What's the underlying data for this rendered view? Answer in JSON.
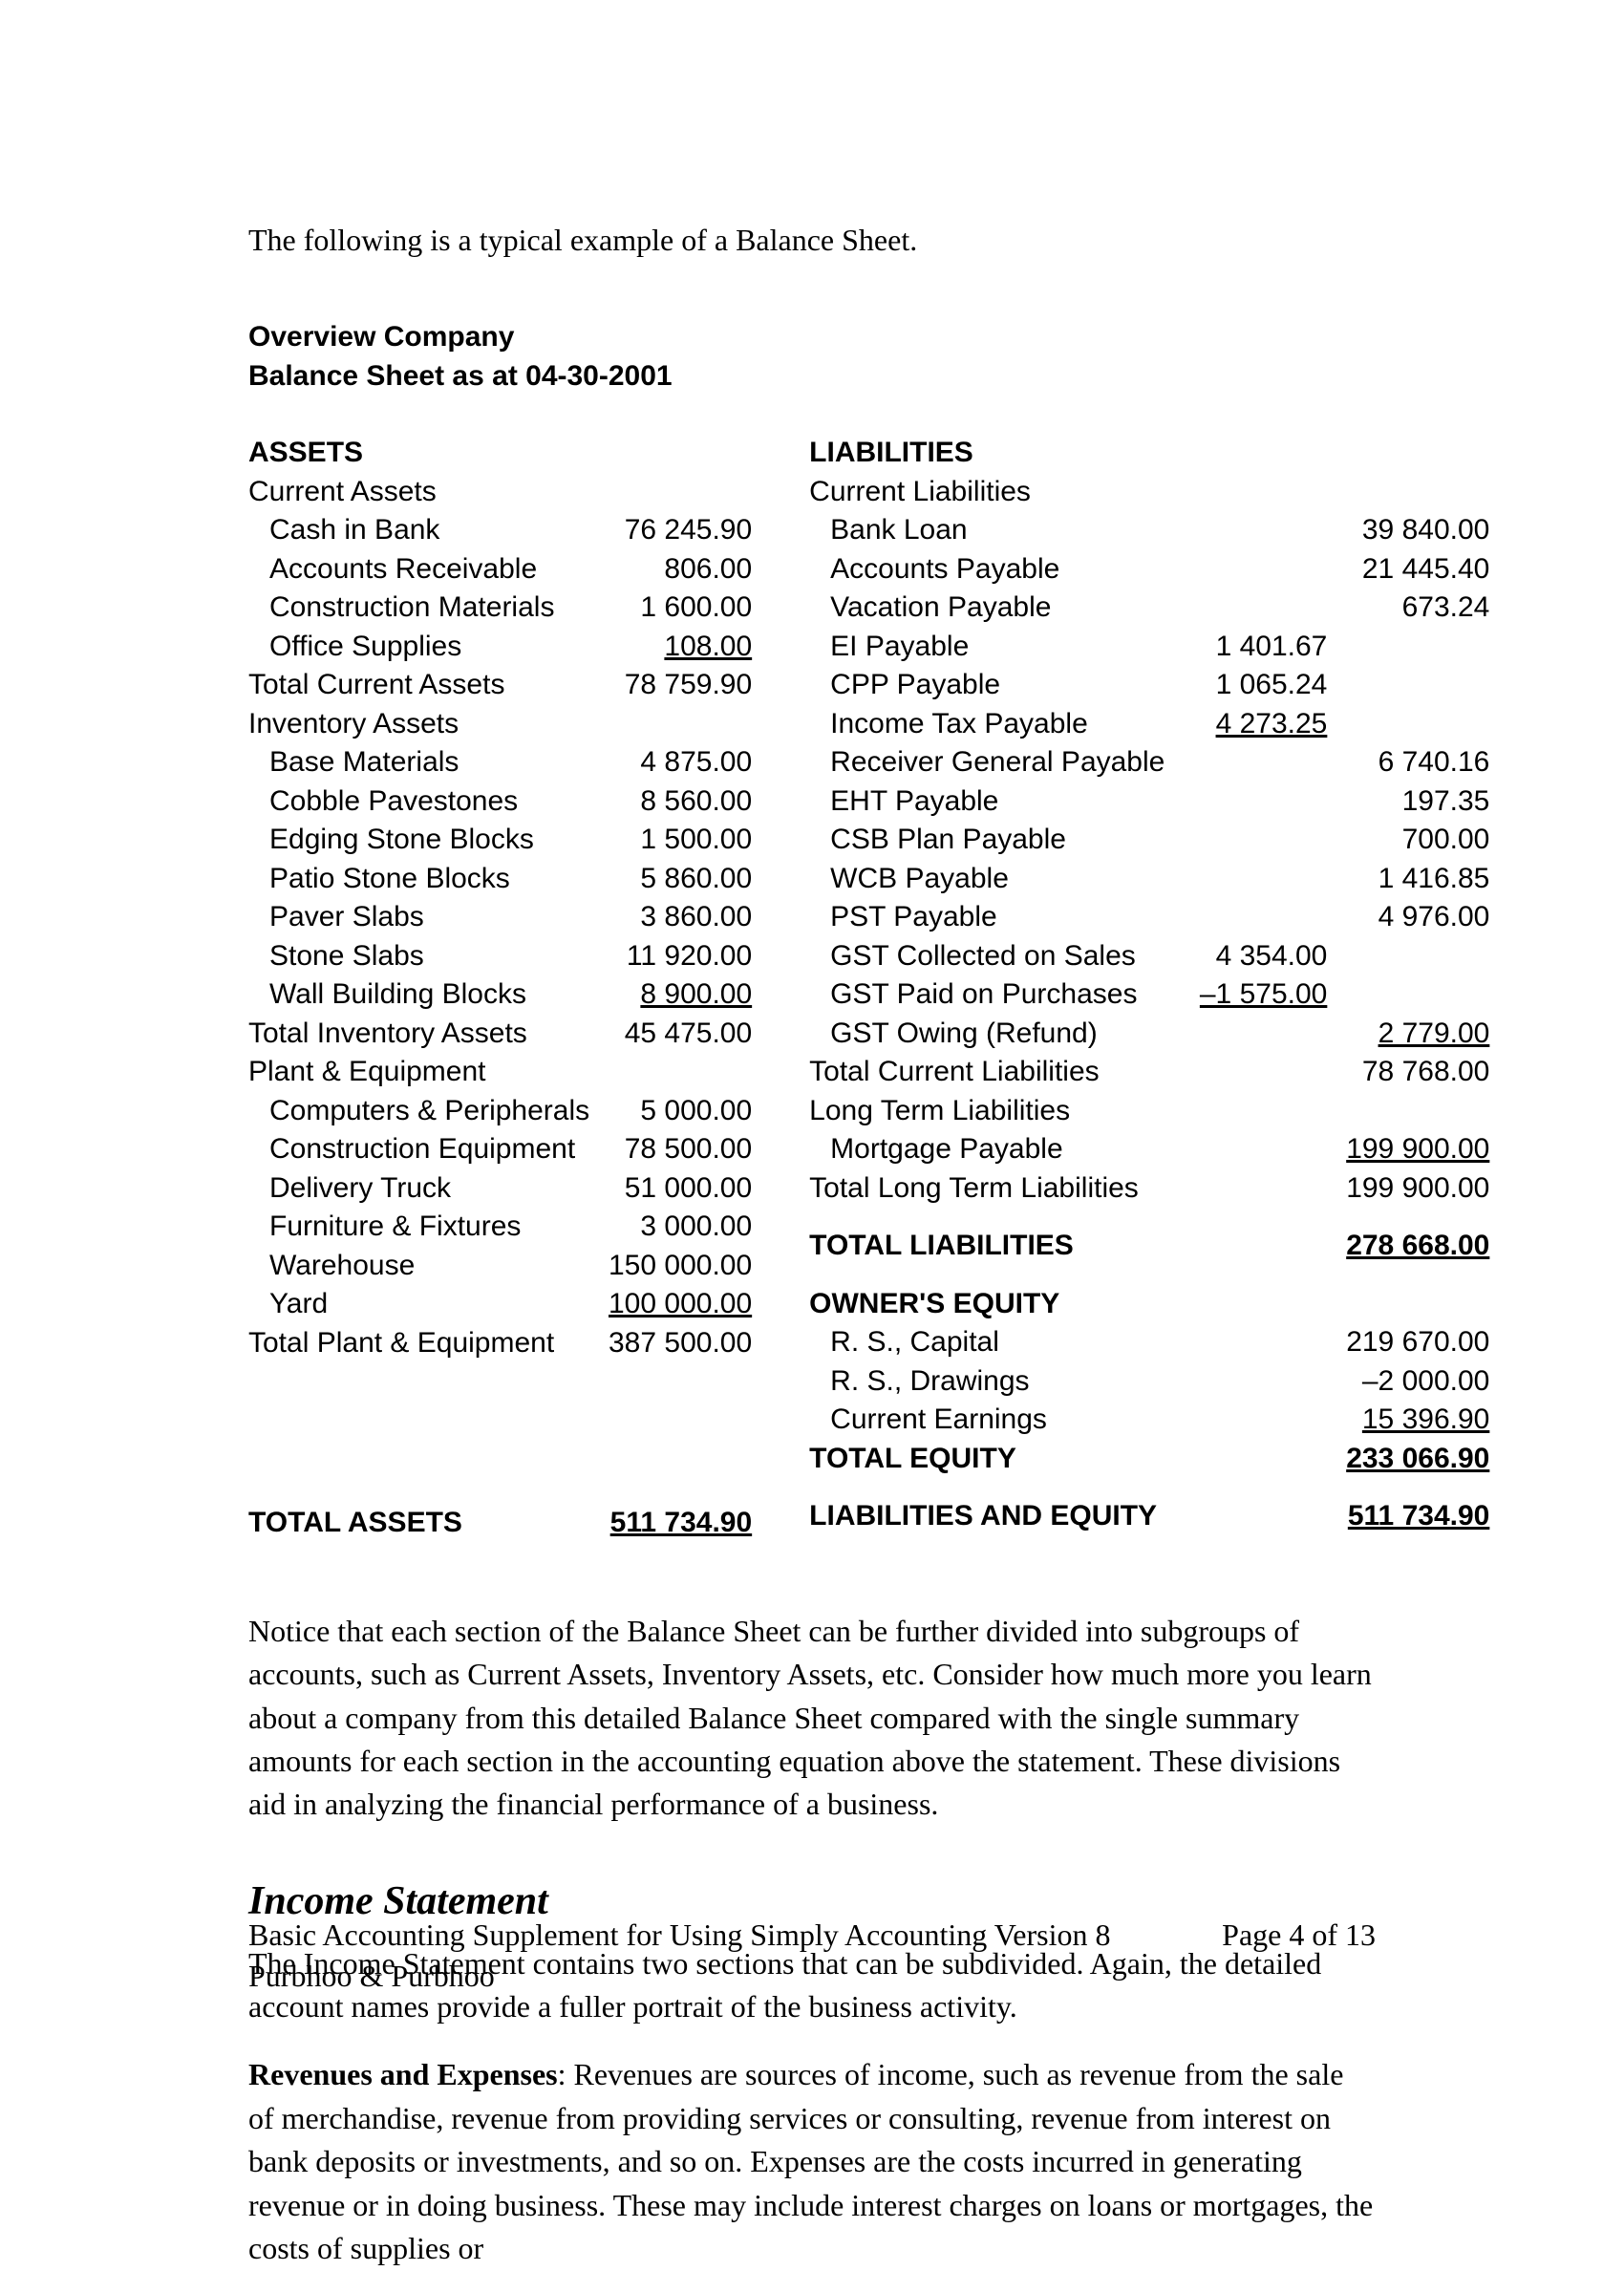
{
  "intro": "The following is a typical example of a Balance Sheet.",
  "companyName": "Overview Company",
  "sheetTitle": "Balance Sheet  as at 04-30-2001",
  "assets": {
    "heading": "ASSETS",
    "currentAssets": {
      "label": "Current Assets",
      "items": [
        {
          "label": "Cash in Bank",
          "value": "76 245.90"
        },
        {
          "label": "Accounts Receivable",
          "value": "806.00"
        },
        {
          "label": "Construction Materials",
          "value": "1 600.00"
        },
        {
          "label": "Office Supplies",
          "value": "108.00",
          "underline": true
        }
      ],
      "totalLabel": "Total Current Assets",
      "totalValue": "78 759.90"
    },
    "inventoryAssets": {
      "label": "Inventory Assets",
      "items": [
        {
          "label": "Base Materials",
          "value": "4 875.00"
        },
        {
          "label": "Cobble Pavestones",
          "value": "8 560.00"
        },
        {
          "label": "Edging Stone Blocks",
          "value": "1 500.00"
        },
        {
          "label": "Patio Stone Blocks",
          "value": "5 860.00"
        },
        {
          "label": "Paver Slabs",
          "value": "3 860.00"
        },
        {
          "label": "Stone Slabs",
          "value": "11 920.00"
        },
        {
          "label": "Wall Building Blocks",
          "value": "8 900.00",
          "underline": true
        }
      ],
      "totalLabel": "Total Inventory Assets",
      "totalValue": "45 475.00"
    },
    "plantEquipment": {
      "label": "Plant & Equipment",
      "items": [
        {
          "label": "Computers & Peripherals",
          "value": "5 000.00"
        },
        {
          "label": "Construction Equipment",
          "value": "78 500.00"
        },
        {
          "label": "Delivery Truck",
          "value": "51 000.00"
        },
        {
          "label": "Furniture & Fixtures",
          "value": "3 000.00"
        },
        {
          "label": "Warehouse",
          "value": "150 000.00"
        },
        {
          "label": "Yard",
          "value": "100 000.00",
          "underline": true
        }
      ],
      "totalLabel": "Total Plant & Equipment",
      "totalValue": "387 500.00"
    },
    "totalLabel": "TOTAL ASSETS",
    "totalValue": "511 734.90"
  },
  "liabilities": {
    "heading": "LIABILITIES",
    "currentLiabilities": {
      "label": "Current Liabilities",
      "items": [
        {
          "label": "Bank Loan",
          "v2": "39 840.00"
        },
        {
          "label": "Accounts Payable",
          "v2": "21 445.40"
        },
        {
          "label": "Vacation Payable",
          "v2": "673.24"
        },
        {
          "label": "EI Payable",
          "v1": "1 401.67"
        },
        {
          "label": "CPP Payable",
          "v1": "1 065.24"
        },
        {
          "label": "Income Tax Payable",
          "v1": "4 273.25",
          "underline1": true
        },
        {
          "label": "Receiver General Payable",
          "v2": "6 740.16"
        },
        {
          "label": "EHT Payable",
          "v2": "197.35"
        },
        {
          "label": "CSB Plan Payable",
          "v2": "700.00"
        },
        {
          "label": "WCB Payable",
          "v2": "1 416.85"
        },
        {
          "label": "PST Payable",
          "v2": "4 976.00"
        },
        {
          "label": "GST Collected on Sales",
          "v1": "4 354.00"
        },
        {
          "label": "GST Paid on Purchases",
          "v1": "–1 575.00",
          "underline1": true
        },
        {
          "label": "GST Owing (Refund)",
          "v2": "2 779.00",
          "underline2": true
        }
      ],
      "totalLabel": "Total Current Liabilities",
      "totalValue": "78 768.00"
    },
    "longTerm": {
      "label": "Long Term Liabilities",
      "items": [
        {
          "label": "Mortgage Payable",
          "v2": "199 900.00",
          "underline2": true
        }
      ],
      "totalLabel": "Total Long Term Liabilities",
      "totalValue": "199 900.00"
    },
    "totalLabel": "TOTAL LIABILITIES",
    "totalValue": "278 668.00"
  },
  "equity": {
    "heading": "OWNER'S EQUITY",
    "items": [
      {
        "label": "R. S., Capital",
        "v2": "219 670.00"
      },
      {
        "label": "R. S., Drawings",
        "v2": "–2 000.00"
      },
      {
        "label": "Current Earnings",
        "v2": "15 396.90",
        "underline2": true
      }
    ],
    "totalLabel": "TOTAL EQUITY",
    "totalValue": "233 066.90"
  },
  "liabEquity": {
    "label": "LIABILITIES AND EQUITY",
    "value": "511 734.90"
  },
  "noticeText": "Notice that each section of the Balance Sheet can be further divided into subgroups of accounts, such as Current Assets, Inventory Assets, etc. Consider how much more you learn about a company from this detailed Balance Sheet compared with the single summary amounts for each section in the accounting equation above the statement. These divisions aid in analyzing the financial performance of a business.",
  "incomeHeading": "Income Statement",
  "incomePara1": "The Income Statement contains two sections that can be subdivided. Again, the detailed account names provide a fuller portrait of the business activity.",
  "revExpLead": "Revenues and Expenses",
  "revExpText": ": Revenues are sources of income, such as revenue from the sale of merchandise, revenue from providing services or consulting, revenue from interest on bank deposits or investments, and so on. Expenses are the costs incurred in generating revenue or in doing business. These may include interest charges on loans or mortgages, the costs of supplies or",
  "footer": {
    "line1": "Basic Accounting Supplement for Using Simply Accounting Version 8",
    "line2": "Purbhoo & Purbhoo",
    "page": "Page 4 of 13"
  }
}
